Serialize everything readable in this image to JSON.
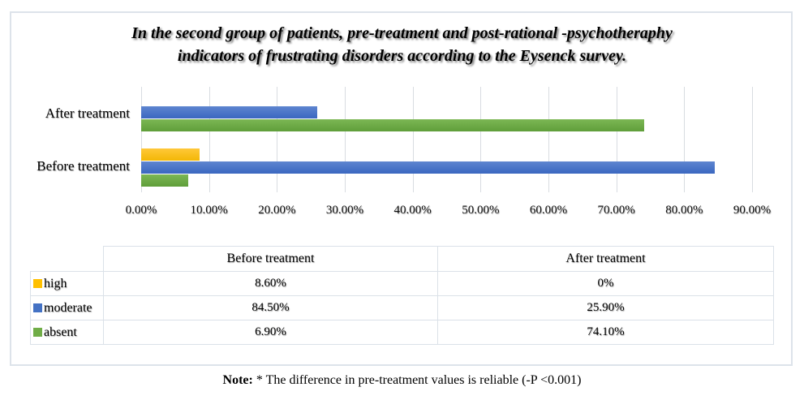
{
  "header": {
    "title_line1": "In the second group of patients, pre-treatment and post-rational -psychotheraphy",
    "title_line2": "indicators of frustrating disorders according to the Eysenck survey."
  },
  "chart_data": {
    "type": "bar",
    "orientation": "horizontal",
    "title": "In the second group of patients, pre-treatment and post-rational -psychotheraphy indicators of frustrating disorders according to the Eysenck survey.",
    "categories": [
      "After treatment",
      "Before treatment"
    ],
    "series": [
      {
        "name": "high",
        "color": "#FFC000",
        "color_top": "#ffc839",
        "color_bottom": "#f3b705",
        "values": [
          0,
          8.6
        ]
      },
      {
        "name": "moderate",
        "color": "#4472C4",
        "color_top": "#5e85d0",
        "color_bottom": "#3a67c0",
        "values": [
          25.9,
          84.5
        ]
      },
      {
        "name": "absent",
        "color": "#70AD47",
        "color_top": "#7cb754",
        "color_bottom": "#5f9e3a",
        "values": [
          74.1,
          6.9
        ]
      }
    ],
    "x_ticks": [
      "0.00%",
      "10.00%",
      "20.00%",
      "30.00%",
      "40.00%",
      "50.00%",
      "60.00%",
      "70.00%",
      "80.00%",
      "90.00%"
    ],
    "xlim": [
      0,
      90
    ],
    "grid": true,
    "legend_position": "table-below"
  },
  "table": {
    "col_headers": [
      "Before treatment",
      "After treatment"
    ],
    "rows": [
      {
        "label": "high",
        "before": "8.60%",
        "after": "0%"
      },
      {
        "label": "moderate",
        "before": "84.50%",
        "after": "25.90%"
      },
      {
        "label": "absent",
        "before": "6.90%",
        "after": "74.10%"
      }
    ]
  },
  "note": {
    "label": "Note:",
    "text": " * The difference in pre-treatment values is reliable (-P <0.001)"
  }
}
